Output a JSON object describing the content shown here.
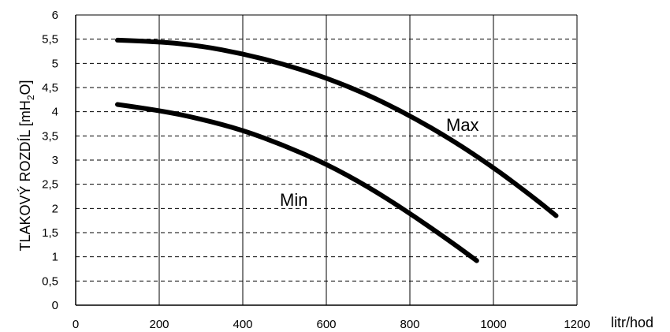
{
  "chart_data": {
    "type": "line",
    "xlim": [
      0,
      1200
    ],
    "ylim": [
      0,
      6
    ],
    "x_ticks": [
      "0",
      "200",
      "400",
      "600",
      "800",
      "1000",
      "1200"
    ],
    "y_ticks": [
      "0",
      "0,5",
      "1",
      "1,5",
      "2",
      "2,5",
      "3",
      "3,5",
      "4",
      "4,5",
      "5",
      "5,5",
      "6"
    ],
    "xlabel": "litr/hod",
    "ylabel_prefix": "TLAKOVÝ ROZDÍL [mH",
    "ylabel_sub": "2",
    "ylabel_suffix": "O]",
    "grid": true,
    "series": [
      {
        "name": "Max",
        "x": [
          100,
          200,
          300,
          400,
          500,
          600,
          700,
          800,
          900,
          1000,
          1100,
          1150
        ],
        "y": [
          5.48,
          5.45,
          5.36,
          5.2,
          4.98,
          4.7,
          4.35,
          3.92,
          3.42,
          2.85,
          2.2,
          1.85
        ]
      },
      {
        "name": "Min",
        "x": [
          100,
          200,
          300,
          400,
          500,
          600,
          700,
          800,
          900,
          960
        ],
        "y": [
          4.15,
          4.03,
          3.85,
          3.62,
          3.3,
          2.92,
          2.45,
          1.9,
          1.3,
          0.92
        ]
      }
    ]
  }
}
